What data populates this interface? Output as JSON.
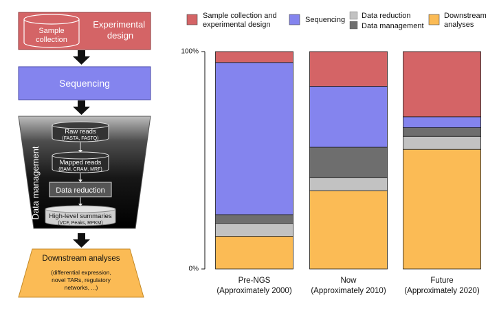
{
  "pipeline": {
    "experimental_design": "Experimental design",
    "sample_collection_line1": "Sample",
    "sample_collection_line2": "collection",
    "sequencing": "Sequencing",
    "data_management_vertical": "Data management",
    "raw_reads": "Raw reads",
    "raw_reads_formats": "(FASTA, FASTQ)",
    "mapped_reads": "Mapped reads",
    "mapped_reads_formats": "(BAM, CRAM, MRF)",
    "data_reduction": "Data reduction",
    "high_level_summaries": "High-level summaries",
    "high_level_formats": "(VCF, Peaks, RPKM)",
    "downstream_title": "Downstream analyses",
    "downstream_detail_1": "(differential expression,",
    "downstream_detail_2": "novel TARs, regulatory",
    "downstream_detail_3": "networks, ...)"
  },
  "colors": {
    "sample": "#d46466",
    "sequencing": "#8484ee",
    "data_reduction": "#c2c2c2",
    "data_management": "#6e6e6e",
    "downstream": "#fbbb55",
    "arrow": "#111111"
  },
  "legend": {
    "sample_line1": "Sample collection and",
    "sample_line2": "experimental design",
    "sequencing": "Sequencing",
    "data_reduction": "Data reduction",
    "data_management": "Data management",
    "downstream_line1": "Downstream",
    "downstream_line2": "analyses"
  },
  "chart_data": {
    "type": "bar",
    "stacked": true,
    "categories": [
      "Pre-NGS (Approximately 2000)",
      "Now (Approximately 2010)",
      "Future (Approximately 2020)"
    ],
    "category_lines": [
      [
        "Pre-NGS",
        "(Approximately 2000)"
      ],
      [
        "Now",
        "(Approximately 2010)"
      ],
      [
        "Future",
        "(Approximately 2020)"
      ]
    ],
    "series": [
      {
        "name": "Downstream analyses",
        "key": "downstream",
        "values": [
          15,
          36,
          55
        ]
      },
      {
        "name": "Data reduction",
        "key": "data_reduction",
        "values": [
          6,
          6,
          6
        ]
      },
      {
        "name": "Data management",
        "key": "data_management",
        "values": [
          4,
          14,
          4
        ]
      },
      {
        "name": "Sequencing",
        "key": "sequencing",
        "values": [
          70,
          28,
          5
        ]
      },
      {
        "name": "Sample collection and experimental design",
        "key": "sample",
        "values": [
          5,
          16,
          30
        ]
      }
    ],
    "ylim": [
      0,
      100
    ],
    "yticks": [
      "100%",
      "0%"
    ],
    "legend_position": "top"
  }
}
